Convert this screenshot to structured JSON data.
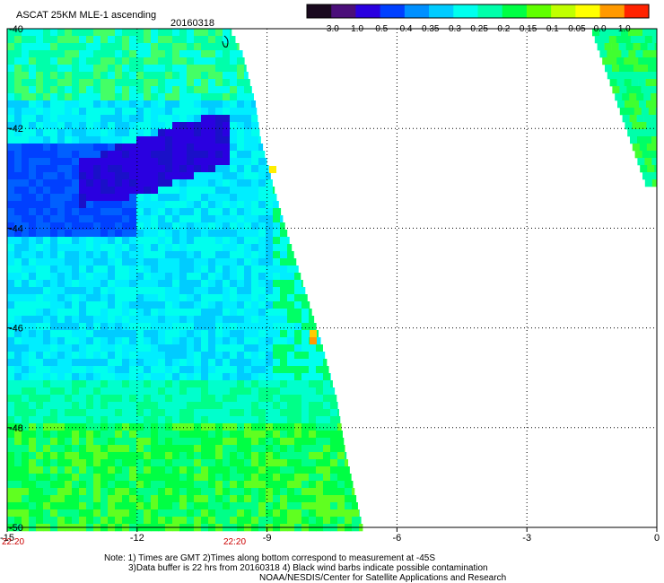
{
  "header": {
    "title": "ASCAT 25KM MLE-1 ascending",
    "date": "20160318"
  },
  "colorbar": {
    "labels": [
      "-3.0",
      "-1.0",
      "-0.5",
      "-0.4",
      "-0.35",
      "-0.3",
      "-0.25",
      "-0.2",
      "-0.15",
      "-0.1",
      "-0.05",
      "0.0",
      "1.0"
    ],
    "colors": [
      "#1a0a1f",
      "#4b0f7a",
      "#2a00e0",
      "#0040ff",
      "#0090ff",
      "#00ccff",
      "#00ffee",
      "#00ffaa",
      "#00ff44",
      "#60ff00",
      "#c0ff00",
      "#ffff00",
      "#ff9900",
      "#ff2200"
    ]
  },
  "map": {
    "lon_ticks": [
      "-15",
      "-12",
      "-9",
      "-6",
      "-3",
      "0"
    ],
    "lat_ticks": [
      "-40",
      "-42",
      "-44",
      "-46",
      "-48",
      "-50"
    ],
    "lon_range": [
      -15,
      0
    ],
    "lat_range": [
      -50,
      -40
    ]
  },
  "time_labels": [
    "22:20",
    "22:20"
  ],
  "notes": [
    "Note: 1) Times are GMT 2)Times along bottom correspond to measurement at -45S",
    "3)Data buffer is 22 hrs from 20160318 4) Black wind barbs indicate possible contamination",
    "NOAA/NESDIS/Center for Satellite Applications and Research"
  ]
}
